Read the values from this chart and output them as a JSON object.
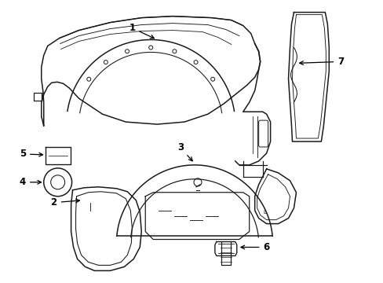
{
  "background_color": "#ffffff",
  "line_color": "#1a1a1a",
  "line_width": 1.1,
  "label_fontsize": 8.5,
  "fig_width": 4.89,
  "fig_height": 3.6,
  "dpi": 100
}
